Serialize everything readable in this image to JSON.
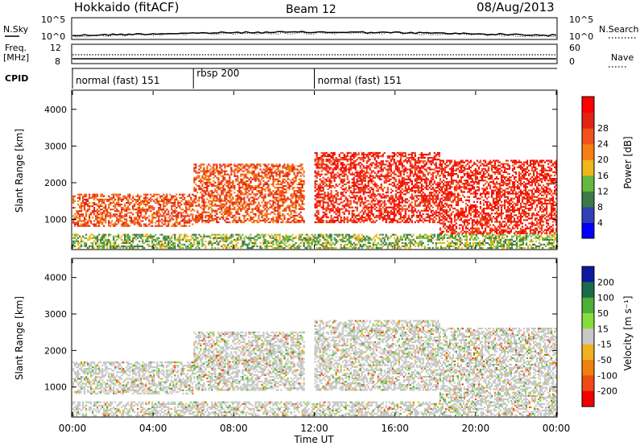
{
  "header": {
    "station": "Hokkaido (fitACF)",
    "beam": "Beam 12",
    "date": "08/Aug/2013"
  },
  "noise_panel": {
    "left_label": "N.Sky",
    "right_label": "N.Search",
    "left_ticks": [
      "10^5",
      "10^0"
    ],
    "right_ticks": [
      "10^5",
      "10^0"
    ]
  },
  "freq_panel": {
    "left_label_1": "Freq.",
    "left_label_2": "[MHz]",
    "left_ticks": [
      "12",
      "8"
    ],
    "right_label": "Nave",
    "right_ticks": [
      "60",
      "0"
    ]
  },
  "cpid_panel": {
    "label": "CPID",
    "segments": [
      {
        "name": "normal (fast) 151",
        "start_hr": 0,
        "end_hr": 6
      },
      {
        "name": "rbsp 200",
        "start_hr": 6,
        "end_hr": 12
      },
      {
        "name": "normal (fast) 151",
        "start_hr": 12,
        "end_hr": 24
      }
    ]
  },
  "power_colorbar": {
    "label": "Power [dB]",
    "ticks": [
      "4",
      "8",
      "12",
      "16",
      "20",
      "24",
      "28"
    ],
    "colors": [
      "#0000ff",
      "#2f3fb4",
      "#3c7a4a",
      "#67b93d",
      "#f0b61a",
      "#f77e12",
      "#f2511c",
      "#e02512",
      "#ff0000"
    ]
  },
  "velocity_colorbar": {
    "label": "Velocity [m s⁻¹]",
    "ticks": [
      "200",
      "100",
      "50",
      "15",
      "-15",
      "-50",
      "-100",
      "-200"
    ],
    "colors": [
      "#0a1aa0",
      "#1b6a4a",
      "#4caf38",
      "#86dc3c",
      "#c8c8c8",
      "#f0b020",
      "#f08010",
      "#ee4a14",
      "#f00000"
    ]
  },
  "chart_data": [
    {
      "type": "heatmap",
      "name": "power",
      "ylabel": "Slant Range [km]",
      "yticks": [
        1000,
        2000,
        3000,
        4000
      ],
      "xlim_hr": [
        0,
        24
      ],
      "ylim_km": [
        200,
        4500
      ],
      "xticks": [
        "00:00",
        "04:00",
        "08:00",
        "12:00",
        "16:00",
        "20:00",
        "00:00"
      ],
      "bands": [
        {
          "t0": 0,
          "t1": 6,
          "r_low": 800,
          "r_high": 1700,
          "level": 6
        },
        {
          "t0": 6,
          "t1": 11.5,
          "r_low": 900,
          "r_high": 2500,
          "level": 6
        },
        {
          "t0": 12,
          "t1": 18.2,
          "r_low": 900,
          "r_high": 2800,
          "level": 7
        },
        {
          "t0": 18.2,
          "t1": 24,
          "r_low": 600,
          "r_high": 2600,
          "level": 7
        },
        {
          "t0": 0,
          "t1": 24,
          "r_low": 200,
          "r_high": 600,
          "level": 3
        }
      ]
    },
    {
      "type": "heatmap",
      "name": "velocity",
      "ylabel": "Slant Range [km]",
      "yticks": [
        1000,
        2000,
        3000,
        4000
      ],
      "xlim_hr": [
        0,
        24
      ],
      "ylim_km": [
        200,
        4500
      ],
      "xticks": [
        "00:00",
        "04:00",
        "08:00",
        "12:00",
        "16:00",
        "20:00",
        "00:00"
      ],
      "xlabel": "Time UT"
    }
  ]
}
